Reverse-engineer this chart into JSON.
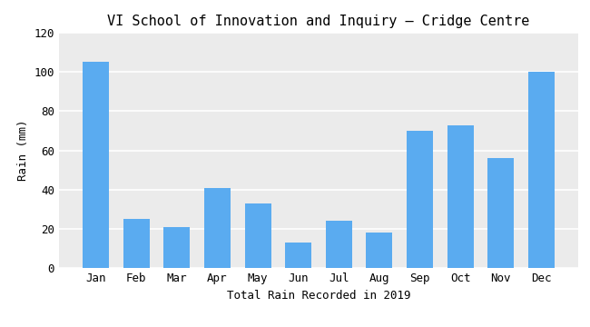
{
  "title": "VI School of Innovation and Inquiry – Cridge Centre",
  "xlabel": "Total Rain Recorded in 2019",
  "ylabel": "Rain (mm)",
  "months": [
    "Jan",
    "Feb",
    "Mar",
    "Apr",
    "May",
    "Jun",
    "Jul",
    "Aug",
    "Sep",
    "Oct",
    "Nov",
    "Dec"
  ],
  "values": [
    105,
    25,
    21,
    41,
    33,
    13,
    24,
    18,
    70,
    73,
    56,
    100
  ],
  "bar_color": "#5aabf0",
  "ylim": [
    0,
    120
  ],
  "yticks": [
    0,
    20,
    40,
    60,
    80,
    100,
    120
  ],
  "background_color": "#ebebeb",
  "grid_color": "#ffffff",
  "title_fontsize": 11,
  "label_fontsize": 9,
  "tick_fontsize": 9
}
